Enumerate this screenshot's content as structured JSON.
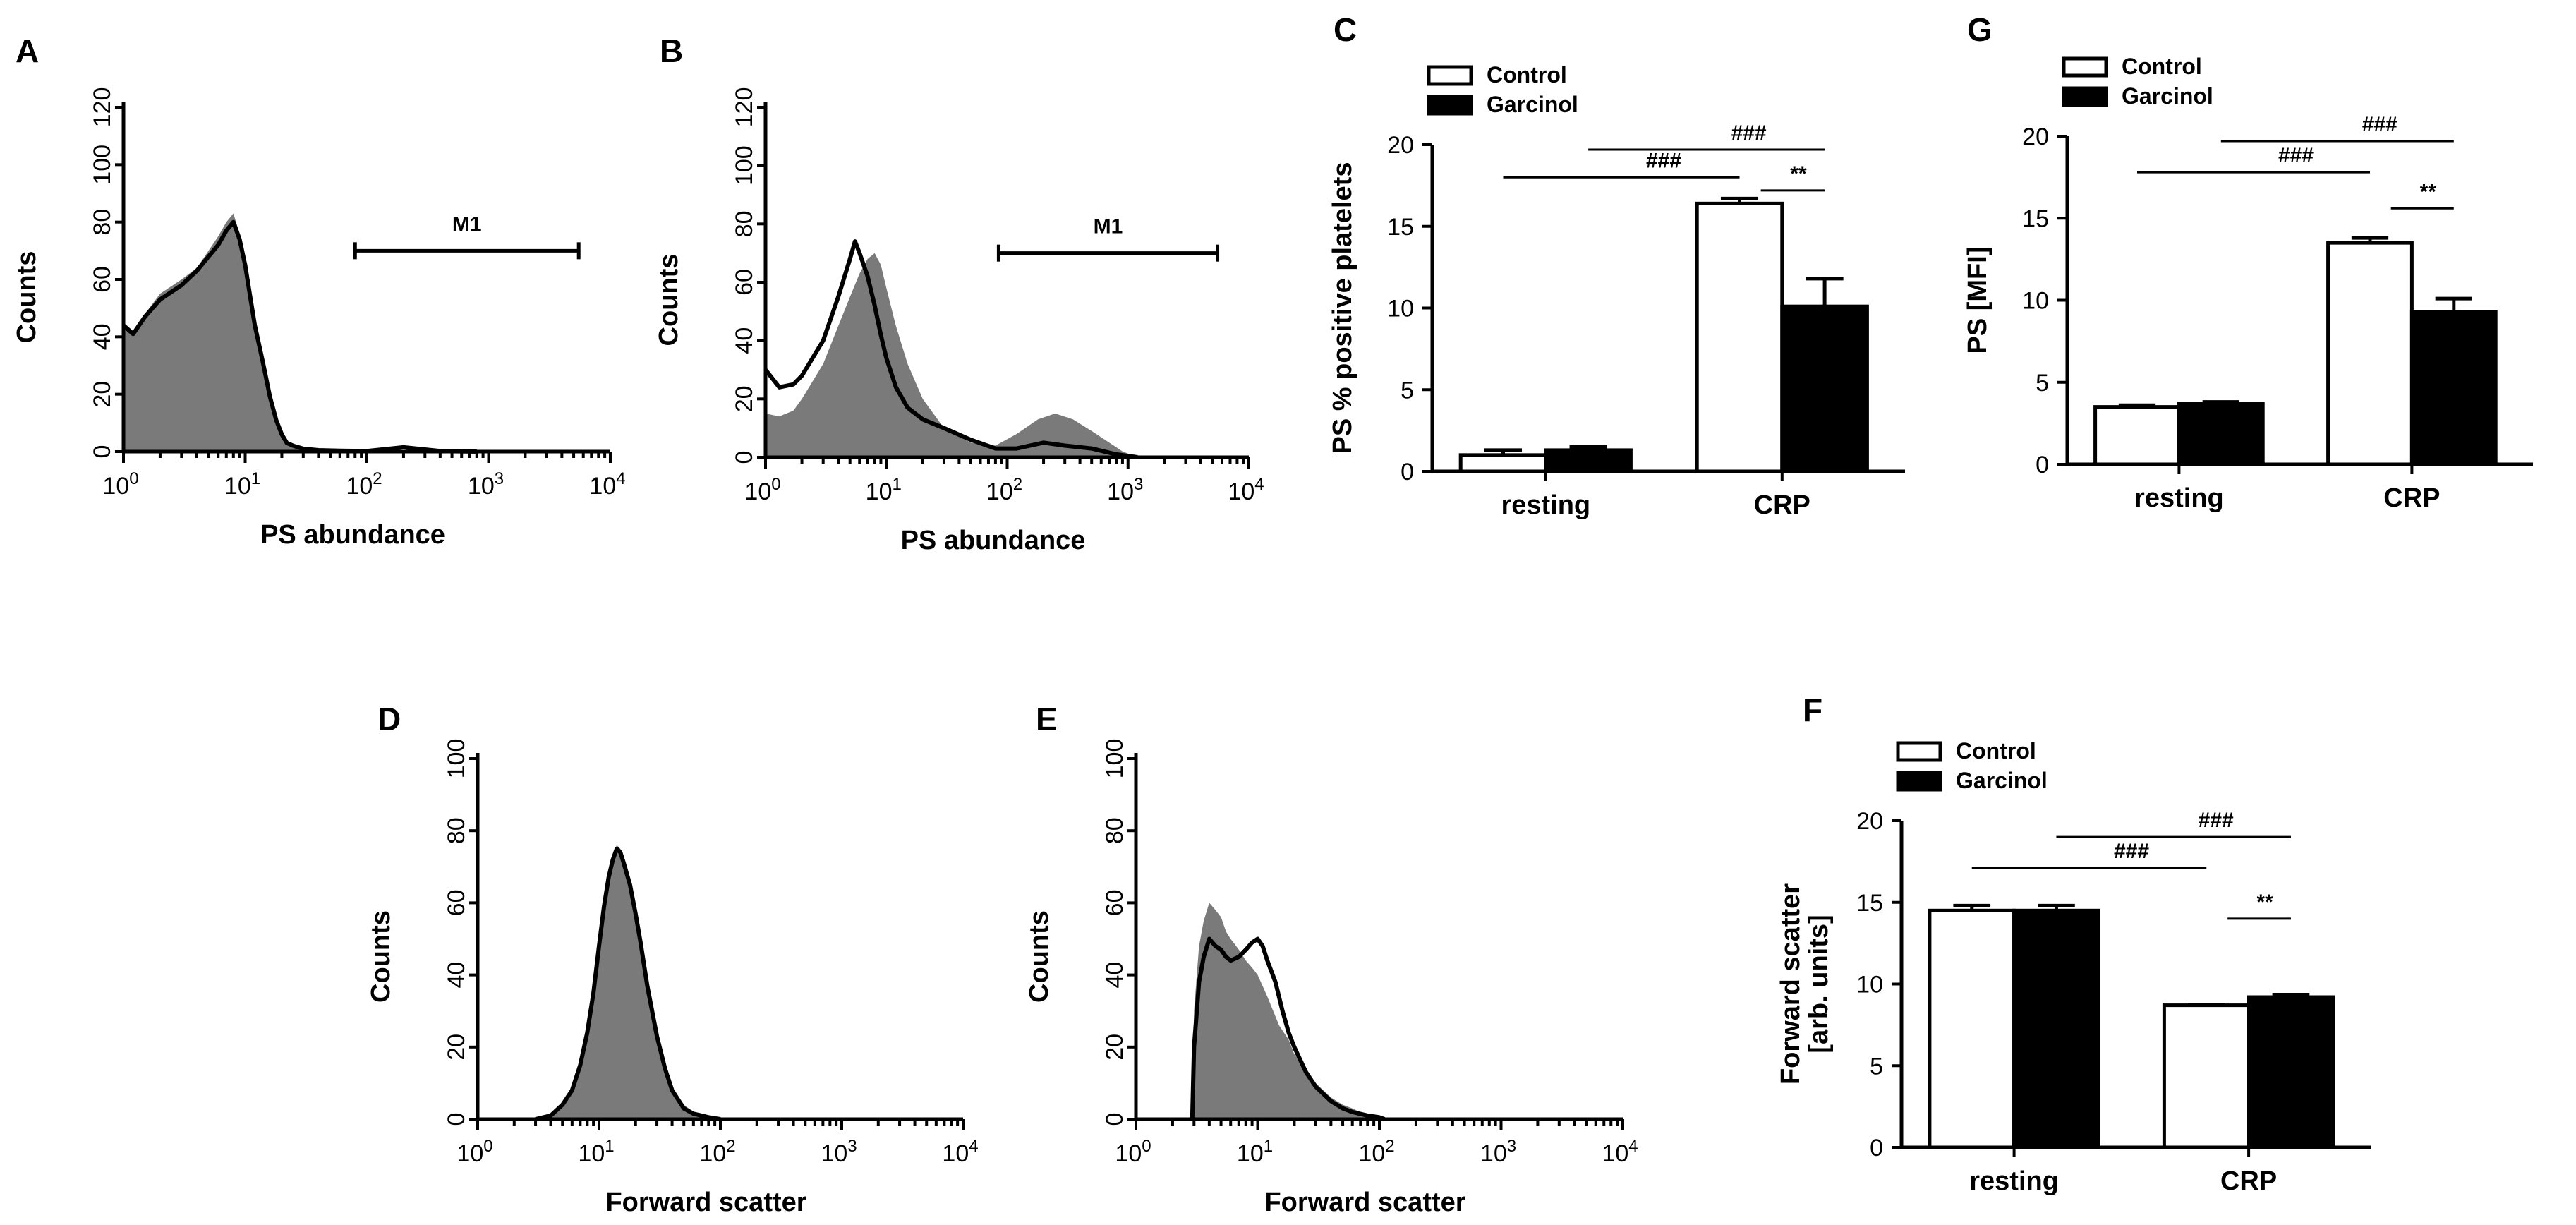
{
  "colors": {
    "ink": "#000000",
    "fill_gray": "#7a7a7a",
    "control_fill": "#ffffff",
    "garcinol_fill": "#000000"
  },
  "chart_data": [
    {
      "panel": "A",
      "type": "area",
      "xlabel": "PS abundance",
      "ylabel": "Counts",
      "xscale": "log",
      "xlim": [
        1,
        10000
      ],
      "ylim": [
        0,
        120
      ],
      "yticks": [
        0,
        20,
        40,
        60,
        80,
        100,
        120
      ],
      "xticks": [
        {
          "base": "10",
          "exp": "0"
        },
        {
          "base": "10",
          "exp": "1"
        },
        {
          "base": "10",
          "exp": "2"
        },
        {
          "base": "10",
          "exp": "3"
        },
        {
          "base": "10",
          "exp": "4"
        }
      ],
      "marker": {
        "label": "M1",
        "from": 80,
        "to": 5500,
        "y": 70
      },
      "series": [
        {
          "name": "Garcinol (filled)",
          "x": [
            1,
            1.2,
            1.5,
            2,
            3,
            4,
            5,
            6,
            7,
            8,
            9,
            10,
            11,
            12,
            14,
            16,
            18,
            20,
            22,
            25,
            30,
            40,
            60,
            100,
            200,
            400,
            800
          ],
          "y": [
            45,
            42,
            48,
            55,
            60,
            64,
            70,
            75,
            80,
            83,
            76,
            66,
            55,
            45,
            32,
            20,
            12,
            7,
            4,
            2,
            1,
            0.5,
            0.3,
            0.2,
            0.2,
            0.1,
            0
          ]
        },
        {
          "name": "Control (line)",
          "x": [
            1,
            1.2,
            1.5,
            2,
            3,
            4,
            5,
            6,
            7,
            8,
            9,
            10,
            11,
            12,
            14,
            16,
            18,
            20,
            22,
            25,
            30,
            40,
            60,
            100,
            200,
            400,
            800
          ],
          "y": [
            44,
            41,
            47,
            53,
            58,
            63,
            68,
            72,
            77,
            80,
            74,
            65,
            54,
            44,
            31,
            19,
            11,
            6,
            3,
            2,
            1,
            0.5,
            0.3,
            0.2,
            1.5,
            0.2,
            0
          ]
        }
      ]
    },
    {
      "panel": "B",
      "type": "area",
      "xlabel": "PS abundance",
      "ylabel": "Counts",
      "xscale": "log",
      "xlim": [
        1,
        10000
      ],
      "ylim": [
        0,
        120
      ],
      "yticks": [
        0,
        20,
        40,
        60,
        80,
        100,
        120
      ],
      "xticks": [
        {
          "base": "10",
          "exp": "0"
        },
        {
          "base": "10",
          "exp": "1"
        },
        {
          "base": "10",
          "exp": "2"
        },
        {
          "base": "10",
          "exp": "3"
        },
        {
          "base": "10",
          "exp": "4"
        }
      ],
      "marker": {
        "label": "M1",
        "from": 85,
        "to": 5500,
        "y": 70
      },
      "series": [
        {
          "name": "Garcinol (filled)",
          "x": [
            1,
            1.3,
            1.7,
            2,
            3,
            4,
            5,
            6,
            7,
            8,
            9,
            10,
            12,
            15,
            20,
            30,
            50,
            80,
            120,
            180,
            250,
            350,
            500,
            700,
            900,
            1200
          ],
          "y": [
            15,
            14,
            16,
            20,
            32,
            45,
            55,
            63,
            68,
            70,
            66,
            58,
            45,
            32,
            20,
            10,
            5,
            4,
            8,
            13,
            15,
            13,
            9,
            5,
            2,
            0
          ]
        },
        {
          "name": "Control (line)",
          "x": [
            1,
            1.3,
            1.7,
            2,
            3,
            4,
            5,
            5.5,
            6,
            7,
            8,
            9,
            10,
            12,
            15,
            20,
            30,
            50,
            80,
            120,
            200,
            300,
            500,
            800,
            1200
          ],
          "y": [
            30,
            24,
            25,
            28,
            40,
            55,
            68,
            74,
            70,
            62,
            52,
            42,
            34,
            24,
            17,
            13,
            10,
            6,
            3,
            3,
            5,
            4,
            3,
            1,
            0
          ]
        }
      ]
    },
    {
      "panel": "C",
      "type": "bar",
      "ylabel": "PS % positive platelets",
      "categories": [
        "resting",
        "CRP"
      ],
      "ylim": [
        0,
        20
      ],
      "yticks": [
        0,
        5,
        10,
        15,
        20
      ],
      "series": [
        {
          "name": "Control",
          "values": [
            1.0,
            16.4
          ],
          "errors": [
            0.3,
            0.3
          ]
        },
        {
          "name": "Garcinol",
          "values": [
            1.3,
            10.1
          ],
          "errors": [
            0.2,
            1.7
          ]
        }
      ],
      "annotations": [
        {
          "label": "###",
          "from": "resting/Control",
          "to": "CRP/Control",
          "y": 18.0
        },
        {
          "label": "###",
          "from": "resting/Garcinol",
          "to": "CRP/Garcinol",
          "y": 19.7
        },
        {
          "label": "**",
          "from": "CRP/Control",
          "to": "CRP/Garcinol",
          "y": 17.2
        }
      ]
    },
    {
      "panel": "G",
      "type": "bar",
      "ylabel": "PS [MFI]",
      "categories": [
        "resting",
        "CRP"
      ],
      "ylim": [
        0,
        20
      ],
      "yticks": [
        0,
        5,
        10,
        15,
        20
      ],
      "series": [
        {
          "name": "Control",
          "values": [
            3.5,
            13.5
          ],
          "errors": [
            0.1,
            0.3
          ]
        },
        {
          "name": "Garcinol",
          "values": [
            3.7,
            9.3
          ],
          "errors": [
            0.1,
            0.8
          ]
        }
      ],
      "annotations": [
        {
          "label": "###",
          "from": "resting/Control",
          "to": "CRP/Control",
          "y": 17.8
        },
        {
          "label": "###",
          "from": "resting/Garcinol",
          "to": "CRP/Garcinol",
          "y": 19.7
        },
        {
          "label": "**",
          "from": "CRP/Control",
          "to": "CRP/Garcinol",
          "y": 15.6
        }
      ]
    },
    {
      "panel": "D",
      "type": "area",
      "xlabel": "Forward scatter",
      "ylabel": "Counts",
      "xscale": "log",
      "xlim": [
        1,
        10000
      ],
      "ylim": [
        0,
        100
      ],
      "yticks": [
        0,
        20,
        40,
        60,
        80,
        100
      ],
      "xticks": [
        {
          "base": "10",
          "exp": "0"
        },
        {
          "base": "10",
          "exp": "1"
        },
        {
          "base": "10",
          "exp": "2"
        },
        {
          "base": "10",
          "exp": "3"
        },
        {
          "base": "10",
          "exp": "4"
        }
      ],
      "series": [
        {
          "name": "Garcinol (filled)",
          "x": [
            3,
            4,
            5,
            6,
            7,
            8,
            9,
            10,
            11,
            12,
            13,
            14,
            15,
            16,
            18,
            20,
            22,
            25,
            30,
            35,
            40,
            50,
            60,
            70,
            80,
            100
          ],
          "y": [
            0,
            1,
            4,
            9,
            16,
            25,
            36,
            50,
            60,
            68,
            73,
            76,
            75,
            72,
            66,
            58,
            50,
            38,
            24,
            15,
            9,
            4,
            2,
            1,
            0.5,
            0
          ]
        },
        {
          "name": "Control (line)",
          "x": [
            3,
            4,
            5,
            6,
            7,
            8,
            9,
            10,
            11,
            12,
            13,
            14,
            15,
            16,
            18,
            20,
            22,
            25,
            30,
            35,
            40,
            50,
            60,
            70,
            80,
            100
          ],
          "y": [
            0,
            1,
            4,
            8,
            15,
            24,
            35,
            48,
            59,
            67,
            72,
            75,
            74,
            71,
            65,
            57,
            49,
            37,
            23,
            14,
            8,
            3,
            1.5,
            1,
            0.5,
            0
          ]
        }
      ]
    },
    {
      "panel": "E",
      "type": "area",
      "xlabel": "Forward scatter",
      "ylabel": "Counts",
      "xscale": "log",
      "xlim": [
        1,
        10000
      ],
      "ylim": [
        0,
        100
      ],
      "yticks": [
        0,
        20,
        40,
        60,
        80,
        100
      ],
      "xticks": [
        {
          "base": "10",
          "exp": "0"
        },
        {
          "base": "10",
          "exp": "1"
        },
        {
          "base": "10",
          "exp": "2"
        },
        {
          "base": "10",
          "exp": "3"
        },
        {
          "base": "10",
          "exp": "4"
        }
      ],
      "series": [
        {
          "name": "Garcinol (filled)",
          "x": [
            2.9,
            3.0,
            3.3,
            3.6,
            4.0,
            4.5,
            5.0,
            5.5,
            6.0,
            7.0,
            8.0,
            9.0,
            10,
            12,
            15,
            18,
            20,
            25,
            30,
            40,
            50,
            60,
            80,
            100,
            110
          ],
          "y": [
            0,
            30,
            48,
            55,
            60,
            58,
            56,
            52,
            50,
            47,
            44,
            42,
            40,
            34,
            26,
            22,
            18,
            14,
            10,
            6,
            4,
            3,
            1,
            0.5,
            0
          ]
        },
        {
          "name": "Control (line)",
          "x": [
            2.9,
            3.0,
            3.3,
            3.6,
            4.0,
            4.5,
            5.0,
            5.5,
            6.0,
            7.0,
            8.0,
            9.0,
            10,
            11,
            12,
            14,
            16,
            18,
            20,
            25,
            30,
            40,
            50,
            60,
            80,
            100,
            110
          ],
          "y": [
            0,
            20,
            38,
            45,
            50,
            48,
            47,
            45,
            44,
            45,
            47,
            49,
            50,
            48,
            44,
            38,
            30,
            24,
            20,
            13,
            9,
            5,
            3,
            2,
            1,
            0.5,
            0
          ]
        }
      ]
    },
    {
      "panel": "F",
      "type": "bar",
      "ylabel": [
        "Forward scatter",
        "[arb. units]"
      ],
      "categories": [
        "resting",
        "CRP"
      ],
      "ylim": [
        0,
        20
      ],
      "yticks": [
        0,
        5,
        10,
        15,
        20
      ],
      "series": [
        {
          "name": "Control",
          "values": [
            14.5,
            8.7
          ],
          "errors": [
            0.3,
            0.05
          ]
        },
        {
          "name": "Garcinol",
          "values": [
            14.5,
            9.2
          ],
          "errors": [
            0.3,
            0.15
          ]
        }
      ],
      "annotations": [
        {
          "label": "###",
          "from": "resting/Control",
          "to": "CRP/Control",
          "y": 17.1
        },
        {
          "label": "###",
          "from": "resting/Garcinol",
          "to": "CRP/Garcinol",
          "y": 19.0
        },
        {
          "label": "**",
          "from": "CRP/Control",
          "to": "CRP/Garcinol",
          "y": 14.0
        }
      ]
    }
  ]
}
